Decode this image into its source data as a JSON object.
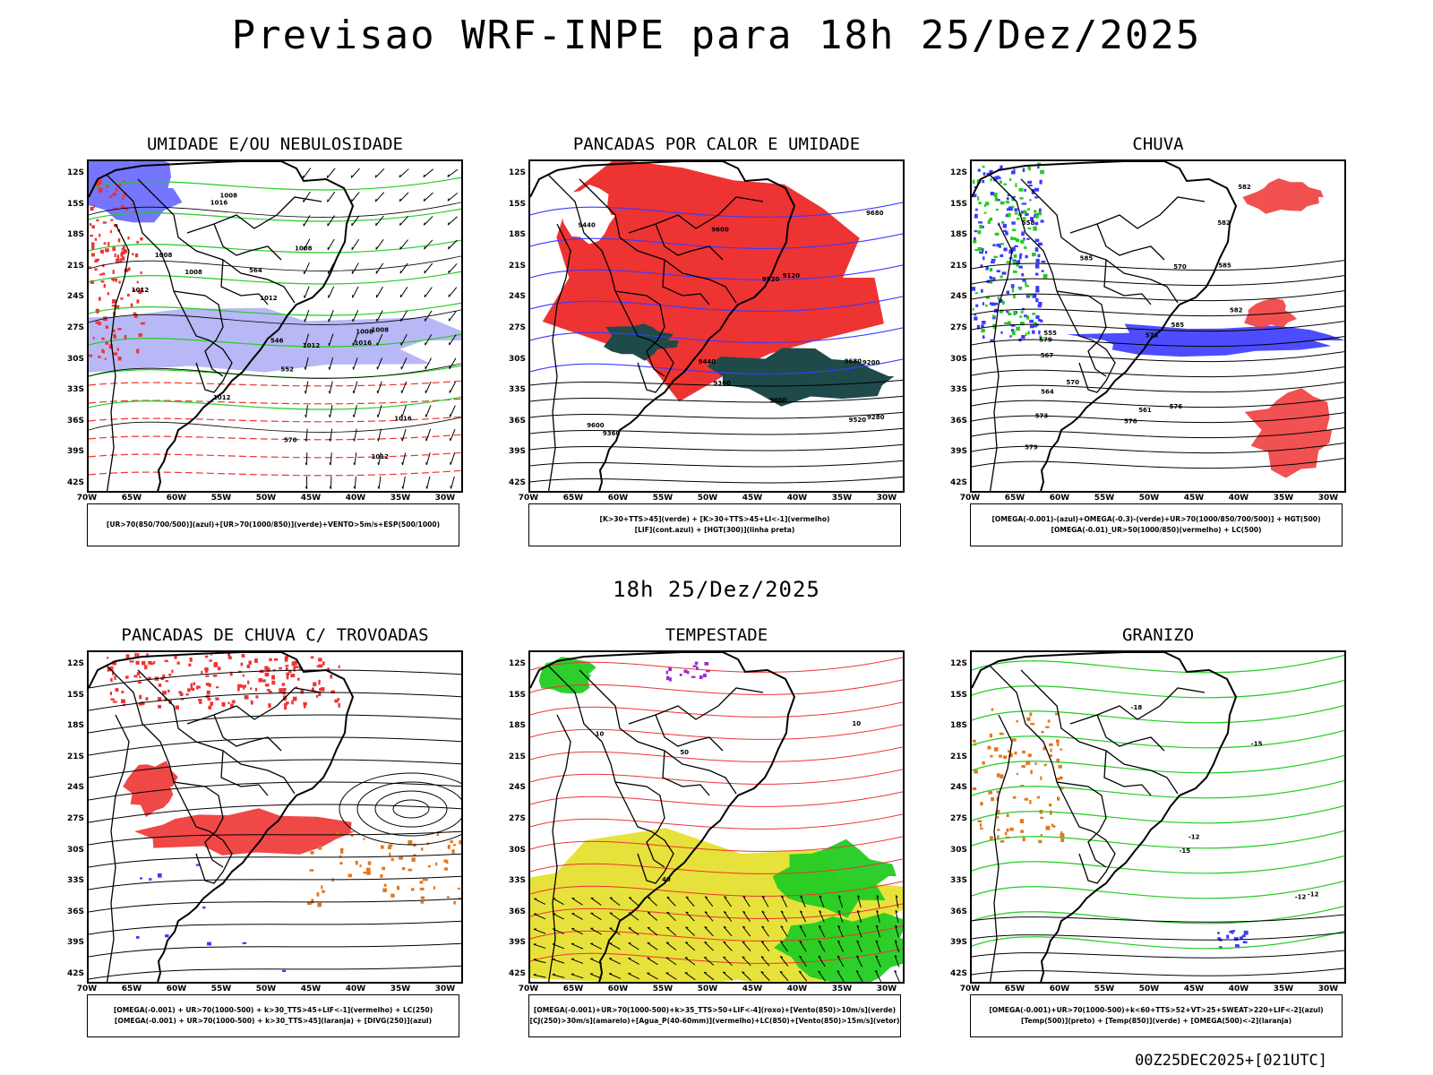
{
  "header": {
    "title": "Previsao WRF-INPE  para 18h 25/Dez/2025"
  },
  "middle_title": "18h 25/Dez/2025",
  "footer": "00Z25DEC2025+[021UTC]",
  "axes": {
    "y_labels": [
      "12S",
      "15S",
      "18S",
      "21S",
      "24S",
      "27S",
      "30S",
      "33S",
      "36S",
      "39S",
      "42S"
    ],
    "x_labels": [
      "70W",
      "65W",
      "60W",
      "55W",
      "50W",
      "45W",
      "40W",
      "35W",
      "30W"
    ]
  },
  "colors": {
    "humidity_blue": "#b0b0f5",
    "deep_blue": "#3a3aff",
    "green": "#22cc22",
    "red": "#ee3333",
    "dark_teal": "#1e4a4a",
    "yellow": "#e6e030",
    "orange": "#e07820",
    "purple": "#9a2ac8"
  },
  "panels": [
    {
      "title": "UMIDADE E/OU NEBULOSIDADE",
      "legend": [
        "[UR>70(850/700/500)](azul)+[UR>70(1000/850)](verde)+VENTO>5m/s+ESP(500/1000)"
      ],
      "contour_labels": [
        "1008",
        "1008",
        "1012",
        "1016",
        "1012",
        "1008",
        "1012",
        "1012",
        "1016",
        "1016",
        "1008",
        "1008",
        "1012",
        "1008",
        "552",
        "570",
        "564",
        "546"
      ]
    },
    {
      "title": "PANCADAS POR CALOR E UMIDADE",
      "legend": [
        "[K>30+TTS>45](verde) + [K>30+TTS>45+LI<-1](vermelho)",
        "[LIF](cont.azul) + [HGT(300)](linha preta)"
      ],
      "contour_labels": [
        "9600",
        "9600",
        "9600",
        "9680",
        "9680",
        "9520",
        "9440",
        "9360",
        "9280",
        "9200",
        "9120",
        "9440",
        "9360",
        "9520"
      ]
    },
    {
      "title": "CHUVA",
      "legend": [
        "[OMEGA(-0.001)-(azul)+OMEGA(-0.3)-(verde)+UR>70(1000/850/700/500)] + HGT(500)",
        "[OMEGA(-0.01)_UR>50(1000/850)(vermelho) + LC(500)"
      ],
      "contour_labels": [
        "582",
        "585",
        "585",
        "582",
        "585",
        "582",
        "579",
        "576",
        "573",
        "570",
        "567",
        "564",
        "561",
        "558",
        "555",
        "579",
        "576",
        "573",
        "570"
      ]
    },
    {
      "title": "PANCADAS DE CHUVA C/ TROVOADAS",
      "legend": [
        "[OMEGA(-0.001) + UR>70(1000-500) + k>30_TTS>45+LIF<-1](vermelho) + LC(250)",
        "[OMEGA(-0.001) + UR>70(1000-500) + k>30_TTS>45](laranja) + [DIVG(250)](azul)"
      ],
      "contour_labels": []
    },
    {
      "title": "TEMPESTADE",
      "legend": [
        "[OMEGA(-0.001)+UR>70(1000-500)+k>35_TTS>50+LIF<-4](roxo)+[Vento(850)>10m/s](verde)",
        "[CJ(250)>30m/s](amarelo)+[Agua_P(40-60mm)](vermelho)+LC(850)+[Vento(850)>15m/s](vetor)"
      ],
      "contour_labels": [
        "40",
        "50",
        "10",
        "10"
      ]
    },
    {
      "title": "GRANIZO",
      "legend": [
        "[OMEGA(-0.001)+UR>70(1000-500)+k<60+TTS>52+VT>25+SWEAT>220+LIF<-2](azul)",
        "[Temp(500)](preto) + [Temp(850)](verde) + [OMEGA(500)<-2](laranja)"
      ],
      "contour_labels": [
        "-12",
        "-12",
        "-15",
        "-15",
        "-18",
        "-12"
      ]
    }
  ]
}
